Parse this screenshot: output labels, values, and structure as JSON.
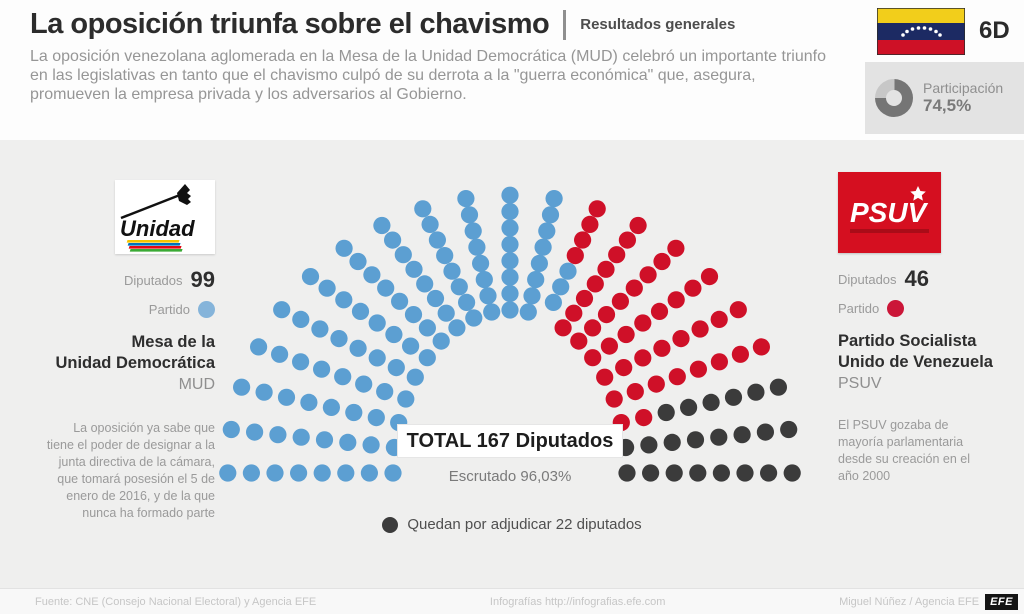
{
  "header": {
    "title": "La oposición triunfa sobre el chavismo",
    "section": "Resultados generales",
    "subtitle": "La oposición venezolana aglomerada en la Mesa de la Unidad Democrática (MUD) celebró un importante triunfo en las legislativas en tanto que el chavismo culpó de su derrota a la \"guerra económica\" que, asegura, promueven la empresa privada y los adversarios al Gobierno.",
    "date_badge": "6D",
    "participation": {
      "label": "Participación",
      "value": "74,5%",
      "percent": 74.5
    }
  },
  "left_party": {
    "logo_text": "Unidad",
    "seats_label": "Diputados",
    "seats": "99",
    "party_label": "Partido",
    "dot_color": "#85b4da",
    "name_line1": "Mesa de la",
    "name_line2": "Unidad Democrática",
    "abbr": "MUD",
    "description": "La oposición ya sabe que tiene el poder de designar a la junta directiva de la cámara, que tomará posesión el 5 de enero de 2016, y de la que nunca ha formado parte"
  },
  "right_party": {
    "logo_text": "PSUV",
    "seats_label": "Diputados",
    "seats": "46",
    "party_label": "Partido",
    "dot_color": "#cb1638",
    "name_line1": "Partido Socialista",
    "name_line2": "Unido de Venezuela",
    "abbr": "PSUV",
    "description": "El PSUV gozaba de mayoría parlamentaria desde su creación en el año 2000"
  },
  "chart_data": {
    "type": "parliament",
    "title": "TOTAL 167 Diputados",
    "total_seats": 167,
    "scrutinized_label": "Escrutado 96,03%",
    "scrutinized_percent": 96.03,
    "legend": "Quedan por adjudicar 22 diputados",
    "layout": {
      "spoke_count": 21,
      "rings": 8,
      "angle_start_deg": 180,
      "angle_step_deg": 9
    },
    "series": [
      {
        "code": "M",
        "name": "Mesa de la Unidad Democrática (MUD)",
        "seats": 99,
        "color": "#5c9fd2"
      },
      {
        "code": "P",
        "name": "Partido Socialista Unido de Venezuela (PSUV)",
        "seats": 46,
        "color": "#cf1028"
      },
      {
        "code": "Q",
        "name": "Quedan por adjudicar",
        "seats": 22,
        "color": "#3b3b3b"
      }
    ],
    "spokes": [
      "MMMMMMMM",
      "MMMMMMMM",
      "MMMMMMMM",
      "MMMMMMMM",
      "MMMMMMMM",
      "MMMMMMMM",
      "MMMMMMMM",
      "MMMMMMMM",
      "MMMMMMMM",
      "MMMMMMMM",
      "MMMMMMMM",
      "MMMMMMMM",
      ".MMMPPPP",
      "PPPPPPPP",
      "PPPPPPPP",
      "PPPPPPPP",
      "PPPPPPPP",
      "PPPPPPPP",
      "PPQQQQQQ",
      "QQQQQQQQ",
      "QQQQQQQQ"
    ]
  },
  "footer": {
    "source": "Fuente: CNE (Consejo Nacional Electoral) y Agencia EFE",
    "site": "Infografías http://infografias.efe.com",
    "credit": "Miguel Núñez / Agencia EFE",
    "logo": "EFE"
  }
}
